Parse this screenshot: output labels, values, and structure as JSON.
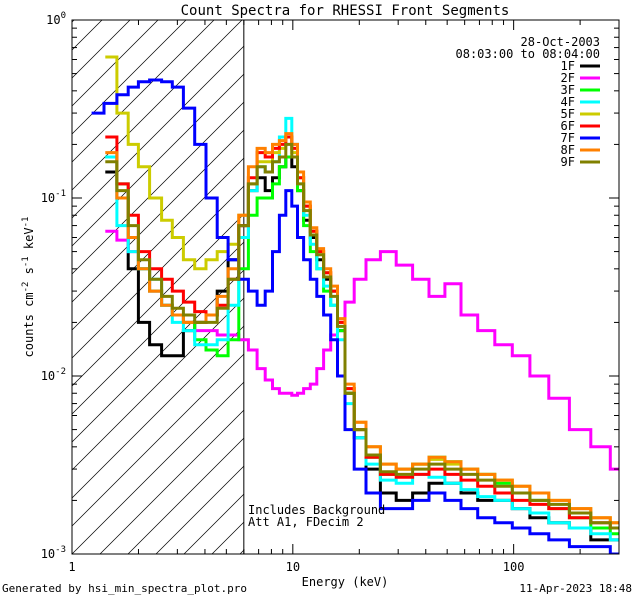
{
  "chart_data": {
    "type": "line",
    "title": "Count Spectra for RHESSI Front Segments",
    "xlabel": "Energy (keV)",
    "ylabel": "counts cm-2 s-1 keV-1",
    "xscale": "log",
    "yscale": "log",
    "xlim": [
      1,
      300
    ],
    "ylim": [
      0.001,
      1
    ],
    "x_ticks": [
      {
        "value": 1,
        "label": "1"
      },
      {
        "value": 10,
        "label": "10"
      },
      {
        "value": 100,
        "label": "100"
      }
    ],
    "y_ticks": [
      {
        "value": 0.001,
        "mant": "10",
        "exp": "-3"
      },
      {
        "value": 0.01,
        "mant": "10",
        "exp": "-2"
      },
      {
        "value": 0.1,
        "mant": "10",
        "exp": "-1"
      },
      {
        "value": 1,
        "mant": "10",
        "exp": "0"
      }
    ],
    "hatched_region_keV": [
      1,
      6
    ],
    "threshold_line_keV": 6,
    "date": "28-Oct-2003",
    "time_range": "08:03:00 to 08:04:00",
    "notes": [
      "Includes Background",
      "Att A1, FDecim 2"
    ],
    "series": [
      {
        "name": "1F",
        "color": "#000000",
        "energy": [
          1.5,
          1.7,
          1.9,
          2.1,
          2.4,
          2.7,
          3.0,
          3.4,
          3.8,
          4.3,
          4.8,
          5.4,
          6.0,
          6.6,
          7.2,
          7.8,
          8.4,
          9.0,
          9.6,
          10.2,
          10.8,
          11.6,
          12.4,
          13.3,
          14.3,
          15.4,
          16.5,
          18,
          20,
          23,
          27,
          32,
          38,
          45,
          53,
          63,
          75,
          90,
          108,
          130,
          160,
          200,
          250,
          300
        ],
        "counts": [
          0.14,
          0.1,
          0.04,
          0.02,
          0.015,
          0.013,
          0.013,
          0.018,
          0.02,
          0.022,
          0.03,
          0.045,
          0.07,
          0.11,
          0.13,
          0.11,
          0.13,
          0.15,
          0.17,
          0.15,
          0.11,
          0.075,
          0.06,
          0.045,
          0.035,
          0.03,
          0.018,
          0.008,
          0.0045,
          0.003,
          0.0022,
          0.002,
          0.0022,
          0.0025,
          0.0025,
          0.0022,
          0.002,
          0.002,
          0.0018,
          0.0016,
          0.0015,
          0.0014,
          0.0012,
          0.0012
        ]
      },
      {
        "name": "2F",
        "color": "#ff00ff",
        "energy": [
          1.5,
          1.7,
          1.9,
          2.1,
          2.4,
          2.7,
          3.0,
          3.4,
          3.8,
          4.3,
          4.8,
          5.4,
          6.0,
          6.6,
          7.2,
          7.8,
          8.4,
          9.0,
          9.6,
          10.2,
          10.8,
          11.6,
          12.4,
          13.3,
          14.3,
          15.4,
          16.5,
          18,
          20,
          23,
          27,
          32,
          38,
          45,
          53,
          63,
          75,
          90,
          108,
          130,
          160,
          200,
          250,
          300
        ],
        "counts": [
          0.065,
          0.058,
          0.05,
          0.04,
          0.03,
          0.025,
          0.022,
          0.02,
          0.018,
          0.018,
          0.017,
          0.017,
          0.016,
          0.014,
          0.011,
          0.0095,
          0.0085,
          0.008,
          0.008,
          0.0078,
          0.008,
          0.0085,
          0.009,
          0.011,
          0.014,
          0.017,
          0.02,
          0.026,
          0.035,
          0.045,
          0.05,
          0.042,
          0.035,
          0.028,
          0.033,
          0.022,
          0.018,
          0.015,
          0.013,
          0.01,
          0.0075,
          0.005,
          0.004,
          0.003
        ]
      },
      {
        "name": "3F",
        "color": "#00ff00",
        "energy": [
          1.5,
          1.7,
          1.9,
          2.1,
          2.4,
          2.7,
          3.0,
          3.4,
          3.8,
          4.3,
          4.8,
          5.4,
          6.0,
          6.6,
          7.2,
          7.8,
          8.4,
          9.0,
          9.6,
          10.2,
          10.8,
          11.6,
          12.4,
          13.3,
          14.3,
          15.4,
          16.5,
          18,
          20,
          23,
          27,
          32,
          38,
          45,
          53,
          63,
          75,
          90,
          108,
          130,
          160,
          200,
          250,
          300
        ],
        "counts": [
          0.17,
          0.12,
          0.06,
          0.04,
          0.03,
          0.025,
          0.022,
          0.02,
          0.016,
          0.014,
          0.013,
          0.016,
          0.04,
          0.08,
          0.1,
          0.1,
          0.12,
          0.15,
          0.17,
          0.17,
          0.11,
          0.07,
          0.05,
          0.04,
          0.03,
          0.025,
          0.018,
          0.008,
          0.005,
          0.0035,
          0.0028,
          0.003,
          0.0032,
          0.0035,
          0.0033,
          0.003,
          0.0028,
          0.0025,
          0.0022,
          0.002,
          0.0018,
          0.0016,
          0.0014,
          0.0013
        ]
      },
      {
        "name": "4F",
        "color": "#00ffff",
        "energy": [
          1.5,
          1.7,
          1.9,
          2.1,
          2.4,
          2.7,
          3.0,
          3.4,
          3.8,
          4.3,
          4.8,
          5.4,
          6.0,
          6.6,
          7.2,
          7.8,
          8.4,
          9.0,
          9.6,
          10.2,
          10.8,
          11.6,
          12.4,
          13.3,
          14.3,
          15.4,
          16.5,
          18,
          20,
          23,
          27,
          32,
          38,
          45,
          53,
          63,
          75,
          90,
          108,
          130,
          160,
          200,
          250,
          300
        ],
        "counts": [
          0.17,
          0.07,
          0.05,
          0.04,
          0.035,
          0.025,
          0.02,
          0.018,
          0.015,
          0.015,
          0.016,
          0.025,
          0.06,
          0.11,
          0.15,
          0.14,
          0.16,
          0.22,
          0.28,
          0.2,
          0.12,
          0.08,
          0.055,
          0.04,
          0.032,
          0.025,
          0.016,
          0.007,
          0.0045,
          0.0032,
          0.0026,
          0.0025,
          0.0028,
          0.0027,
          0.0025,
          0.0023,
          0.0021,
          0.002,
          0.0018,
          0.0017,
          0.0015,
          0.0014,
          0.0013,
          0.0012
        ]
      },
      {
        "name": "5F",
        "color": "#cccc00",
        "energy": [
          1.5,
          1.7,
          1.9,
          2.1,
          2.4,
          2.7,
          3.0,
          3.4,
          3.8,
          4.3,
          4.8,
          5.4,
          6.0,
          6.6,
          7.2,
          7.8,
          8.4,
          9.0,
          9.6,
          10.2,
          10.8,
          11.6,
          12.4,
          13.3,
          14.3,
          15.4,
          16.5,
          18,
          20,
          23,
          27,
          32,
          38,
          45,
          53,
          63,
          75,
          90,
          108,
          130,
          160,
          200,
          250,
          300
        ],
        "counts": [
          0.62,
          0.3,
          0.2,
          0.15,
          0.1,
          0.075,
          0.06,
          0.045,
          0.04,
          0.045,
          0.05,
          0.055,
          0.08,
          0.12,
          0.16,
          0.16,
          0.18,
          0.19,
          0.22,
          0.18,
          0.13,
          0.09,
          0.065,
          0.05,
          0.038,
          0.03,
          0.02,
          0.0085,
          0.0055,
          0.004,
          0.0032,
          0.003,
          0.0032,
          0.0034,
          0.0032,
          0.003,
          0.0028,
          0.0026,
          0.0024,
          0.0022,
          0.002,
          0.0018,
          0.0016,
          0.0015
        ]
      },
      {
        "name": "6F",
        "color": "#ff0000",
        "energy": [
          1.5,
          1.7,
          1.9,
          2.1,
          2.4,
          2.7,
          3.0,
          3.4,
          3.8,
          4.3,
          4.8,
          5.4,
          6.0,
          6.6,
          7.2,
          7.8,
          8.4,
          9.0,
          9.6,
          10.2,
          10.8,
          11.6,
          12.4,
          13.3,
          14.3,
          15.4,
          16.5,
          18,
          20,
          23,
          27,
          32,
          38,
          45,
          53,
          63,
          75,
          90,
          108,
          130,
          160,
          200,
          250,
          300
        ],
        "counts": [
          0.22,
          0.12,
          0.08,
          0.05,
          0.04,
          0.035,
          0.03,
          0.026,
          0.023,
          0.022,
          0.025,
          0.035,
          0.07,
          0.13,
          0.18,
          0.17,
          0.19,
          0.2,
          0.22,
          0.19,
          0.13,
          0.09,
          0.065,
          0.05,
          0.038,
          0.03,
          0.02,
          0.0085,
          0.005,
          0.0035,
          0.0028,
          0.0027,
          0.0028,
          0.003,
          0.0028,
          0.0026,
          0.0024,
          0.0022,
          0.002,
          0.0019,
          0.0018,
          0.0016,
          0.0015,
          0.0014
        ]
      },
      {
        "name": "7F",
        "color": "#0000ff",
        "energy": [
          1.3,
          1.5,
          1.7,
          1.9,
          2.1,
          2.4,
          2.7,
          3.0,
          3.4,
          3.8,
          4.3,
          4.8,
          5.4,
          6.0,
          6.6,
          7.2,
          7.8,
          8.4,
          9.0,
          9.6,
          10.2,
          10.8,
          11.6,
          12.4,
          13.3,
          14.3,
          15.4,
          16.5,
          18,
          20,
          23,
          27,
          32,
          38,
          45,
          53,
          63,
          75,
          90,
          108,
          130,
          160,
          200,
          250,
          300
        ],
        "counts": [
          0.3,
          0.34,
          0.38,
          0.42,
          0.45,
          0.46,
          0.45,
          0.42,
          0.32,
          0.2,
          0.1,
          0.06,
          0.045,
          0.035,
          0.03,
          0.025,
          0.03,
          0.05,
          0.08,
          0.11,
          0.09,
          0.06,
          0.045,
          0.035,
          0.028,
          0.022,
          0.016,
          0.01,
          0.005,
          0.003,
          0.0022,
          0.0018,
          0.0018,
          0.002,
          0.0022,
          0.002,
          0.0018,
          0.0016,
          0.0015,
          0.0014,
          0.0013,
          0.0012,
          0.0011,
          0.0011,
          0.001
        ]
      },
      {
        "name": "8F",
        "color": "#ff8000",
        "energy": [
          1.5,
          1.7,
          1.9,
          2.1,
          2.4,
          2.7,
          3.0,
          3.4,
          3.8,
          4.3,
          4.8,
          5.4,
          6.0,
          6.6,
          7.2,
          7.8,
          8.4,
          9.0,
          9.6,
          10.2,
          10.8,
          11.6,
          12.4,
          13.3,
          14.3,
          15.4,
          16.5,
          18,
          20,
          23,
          27,
          32,
          38,
          45,
          53,
          63,
          75,
          90,
          108,
          130,
          160,
          200,
          250,
          300
        ],
        "counts": [
          0.18,
          0.1,
          0.06,
          0.04,
          0.03,
          0.025,
          0.022,
          0.02,
          0.02,
          0.022,
          0.028,
          0.04,
          0.08,
          0.15,
          0.19,
          0.18,
          0.2,
          0.21,
          0.23,
          0.2,
          0.14,
          0.095,
          0.068,
          0.052,
          0.04,
          0.032,
          0.021,
          0.009,
          0.0055,
          0.004,
          0.0032,
          0.003,
          0.0032,
          0.0035,
          0.0033,
          0.003,
          0.0028,
          0.0026,
          0.0024,
          0.0022,
          0.002,
          0.0018,
          0.0016,
          0.0015
        ]
      },
      {
        "name": "9F",
        "color": "#808000",
        "energy": [
          1.5,
          1.7,
          1.9,
          2.1,
          2.4,
          2.7,
          3.0,
          3.4,
          3.8,
          4.3,
          4.8,
          5.4,
          6.0,
          6.6,
          7.2,
          7.8,
          8.4,
          9.0,
          9.6,
          10.2,
          10.8,
          11.6,
          12.4,
          13.3,
          14.3,
          15.4,
          16.5,
          18,
          20,
          23,
          27,
          32,
          38,
          45,
          53,
          63,
          75,
          90,
          108,
          130,
          160,
          200,
          250,
          300
        ],
        "counts": [
          0.16,
          0.11,
          0.07,
          0.045,
          0.035,
          0.028,
          0.024,
          0.022,
          0.02,
          0.02,
          0.024,
          0.035,
          0.07,
          0.12,
          0.15,
          0.14,
          0.16,
          0.17,
          0.2,
          0.17,
          0.12,
          0.085,
          0.062,
          0.048,
          0.036,
          0.028,
          0.019,
          0.008,
          0.005,
          0.0036,
          0.0029,
          0.0028,
          0.003,
          0.0032,
          0.003,
          0.0028,
          0.0026,
          0.0024,
          0.0022,
          0.002,
          0.0019,
          0.0017,
          0.0015,
          0.0014
        ]
      }
    ]
  },
  "footer": {
    "generated_by": "Generated by hsi_min_spectra_plot.pro",
    "timestamp": "11-Apr-2023 18:48"
  }
}
